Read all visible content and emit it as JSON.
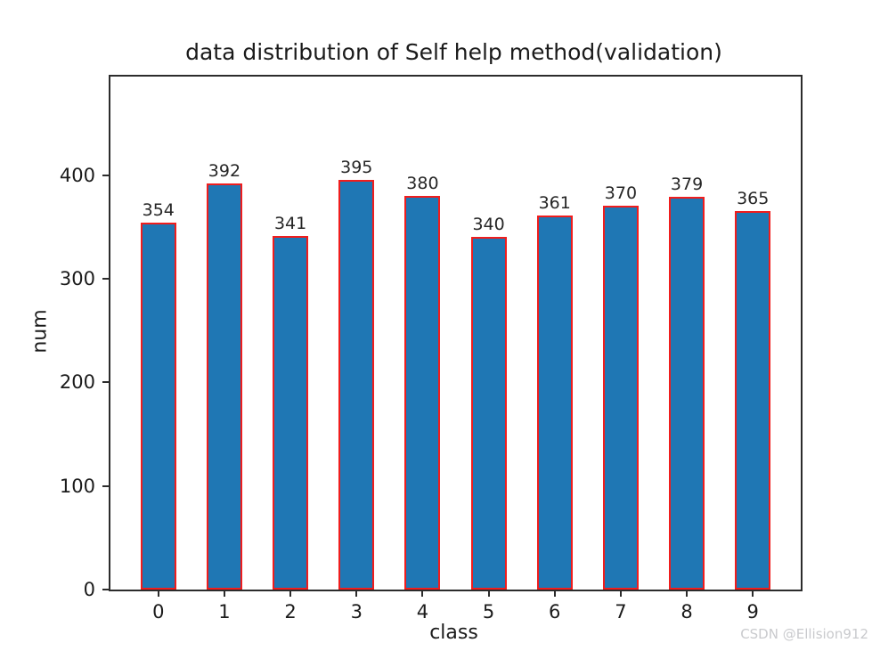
{
  "figure": {
    "watermark": "CSDN @Ellision912"
  },
  "chart_data": {
    "type": "bar",
    "title": "data distribution of Self help method(validation)",
    "categories": [
      "0",
      "1",
      "2",
      "3",
      "4",
      "5",
      "6",
      "7",
      "8",
      "9"
    ],
    "values": [
      354,
      392,
      341,
      395,
      380,
      340,
      361,
      370,
      379,
      365
    ],
    "xlabel": "class",
    "ylabel": "num",
    "ylim": [
      0,
      495
    ],
    "yticks": [
      0,
      100,
      200,
      300,
      400
    ],
    "bar_value_labels_shown": true,
    "grid": false,
    "legend": false,
    "colors": {
      "bar_fill": "#1f77b4",
      "bar_edge": "#f01d1d",
      "axis_text": "#1b1b1b",
      "watermark": "#c9cacd"
    }
  }
}
